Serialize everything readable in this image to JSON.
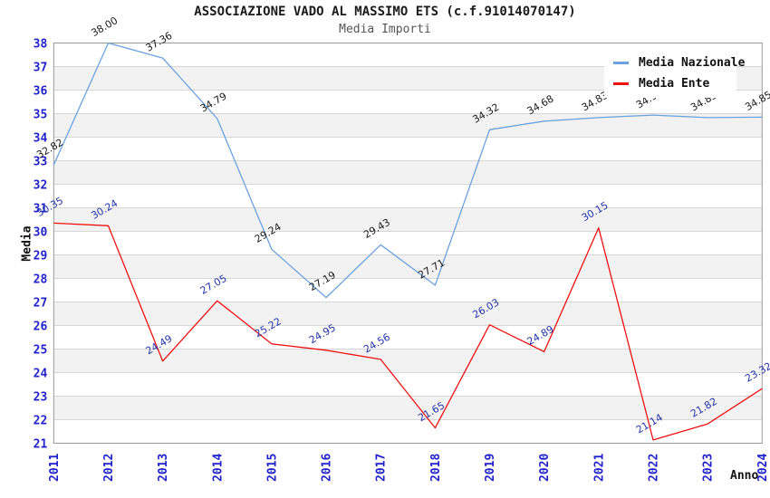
{
  "header": {
    "title": "ASSOCIAZIONE VADO AL MASSIMO ETS (c.f.91014070147)",
    "subtitle": "Media Importi"
  },
  "chart_data": {
    "type": "line",
    "title": "ASSOCIAZIONE VADO AL MASSIMO ETS (c.f.91014070147)",
    "subtitle": "Media Importi",
    "xlabel": "Anno",
    "ylabel": "Media",
    "ylim": [
      21,
      38
    ],
    "y_tick_step": 1,
    "grid": "horizontal-bands",
    "legend_position": "top-right",
    "categories": [
      "2011",
      "2012",
      "2013",
      "2014",
      "2015",
      "2016",
      "2017",
      "2018",
      "2019",
      "2020",
      "2021",
      "2022",
      "2023",
      "2024"
    ],
    "series": [
      {
        "name": "Media Nazionale",
        "color": "#6CA2DF",
        "label_color": "#1a1a1a",
        "values": [
          32.82,
          38.0,
          37.36,
          34.79,
          29.24,
          27.19,
          29.43,
          27.71,
          34.32,
          34.68,
          34.83,
          34.94,
          34.83,
          34.85
        ]
      },
      {
        "name": "Media Ente",
        "color": "#EE1111",
        "label_color": "#2233AA",
        "values": [
          30.35,
          30.24,
          24.49,
          27.05,
          25.22,
          24.95,
          24.56,
          21.65,
          26.03,
          24.89,
          30.15,
          21.14,
          21.82,
          23.32
        ]
      }
    ],
    "colors": {
      "tick": "#2222CC",
      "band": "#F2F2F2",
      "grid": "#D6D6D6",
      "border": "#999999"
    }
  }
}
